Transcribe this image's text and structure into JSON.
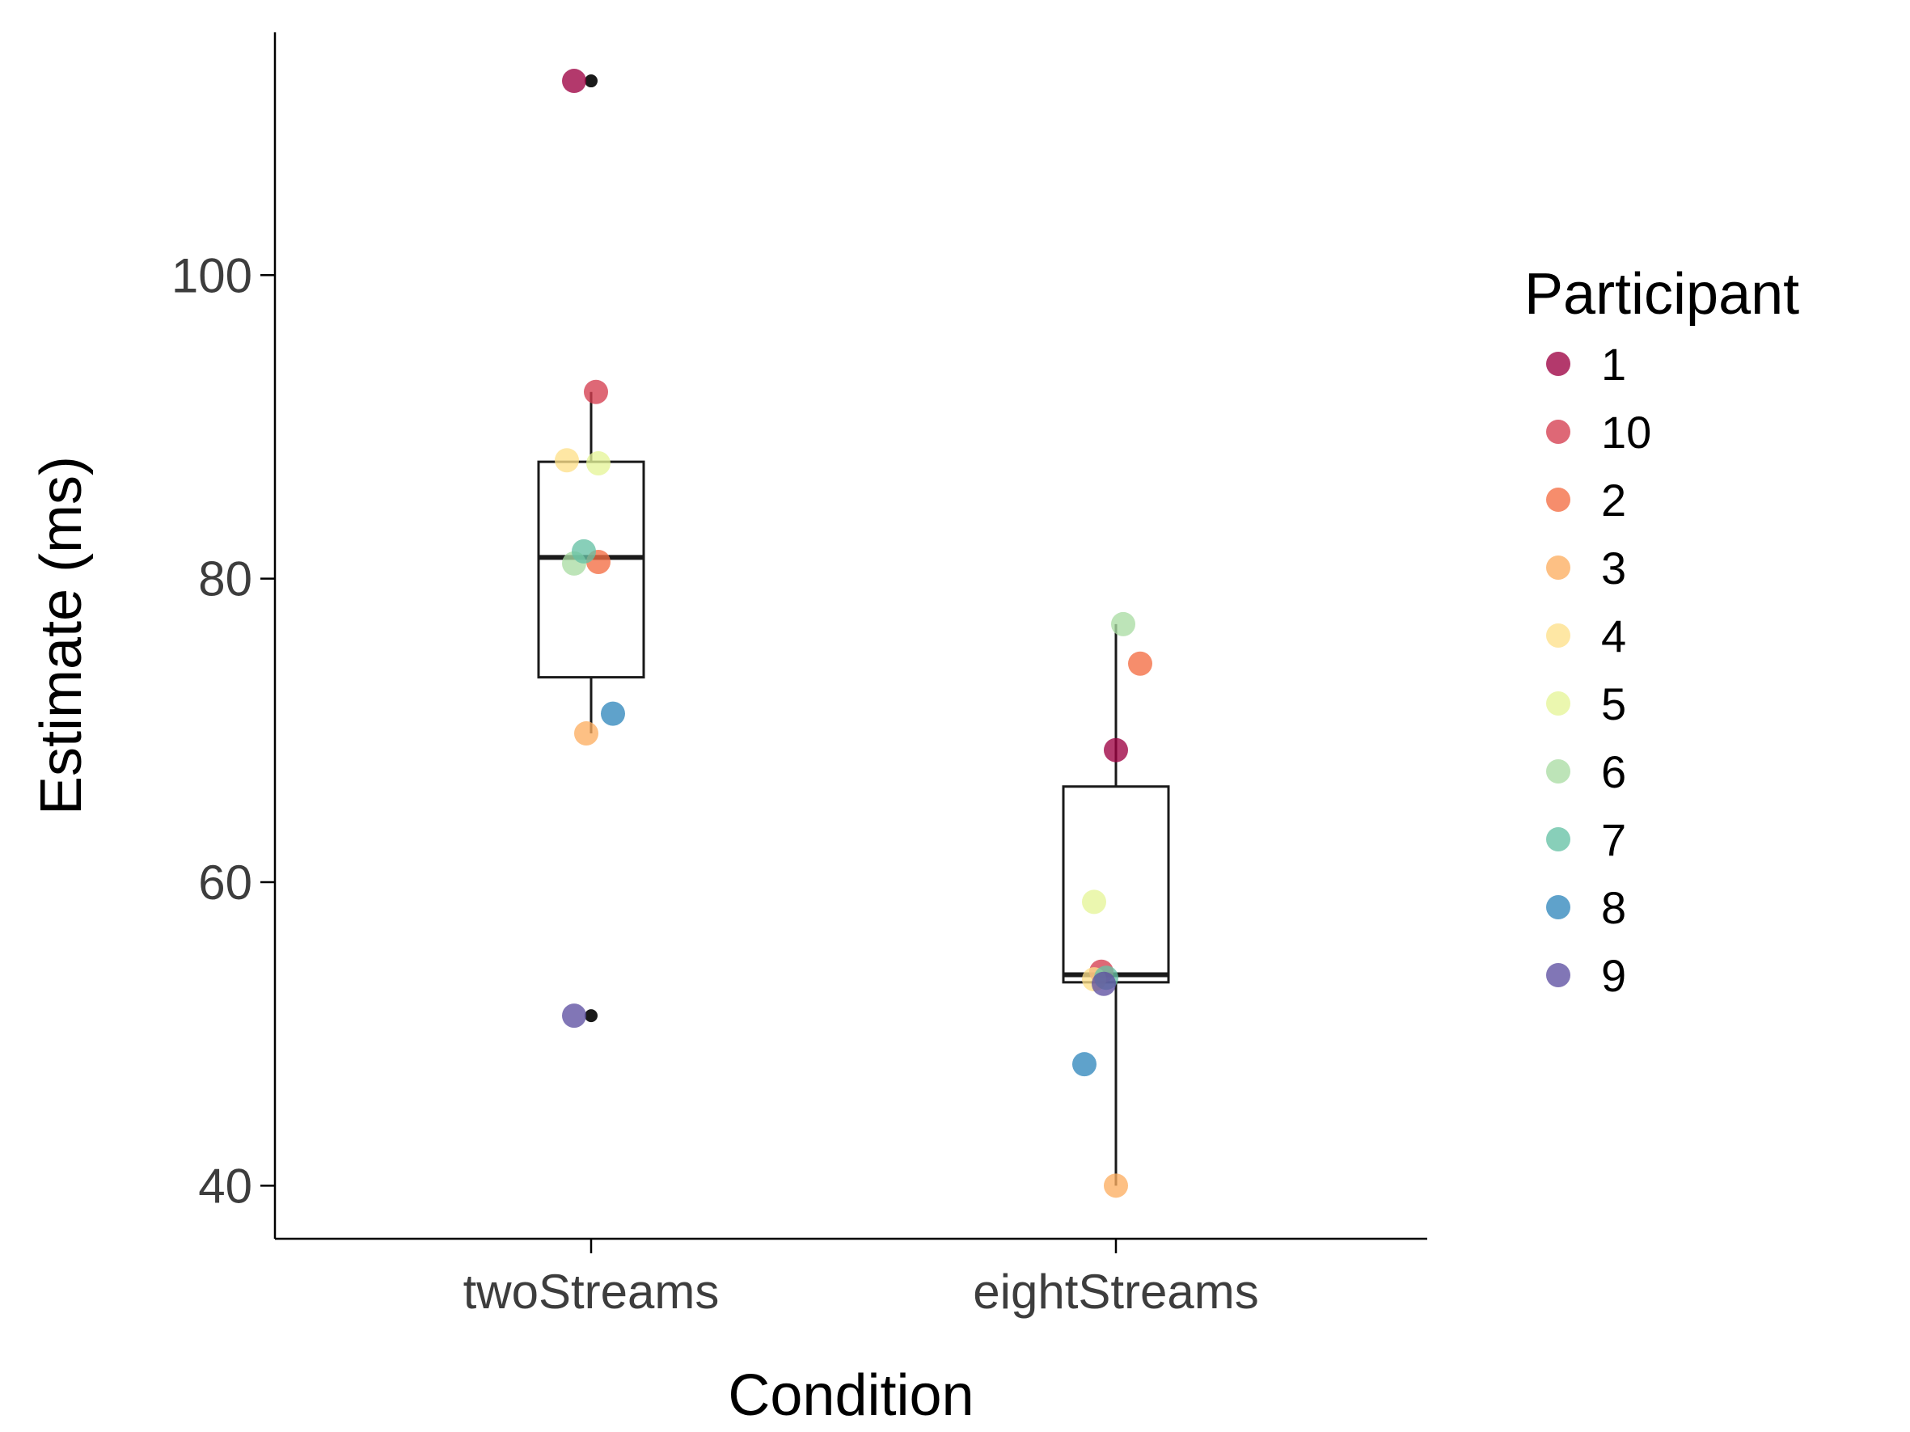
{
  "chart_data": {
    "type": "boxplot",
    "xlabel": "Condition",
    "ylabel": "Estimate (ms)",
    "ylim": [
      36.5,
      116
    ],
    "yticks": [
      40,
      60,
      80,
      100
    ],
    "categories": [
      "twoStreams",
      "eightStreams"
    ],
    "grid": false,
    "legend": {
      "title": "Participant",
      "placement": "right",
      "entries": [
        {
          "name": "1",
          "color": "#9e0142"
        },
        {
          "name": "10",
          "color": "#d53e4f"
        },
        {
          "name": "2",
          "color": "#f46d43"
        },
        {
          "name": "3",
          "color": "#fdae61"
        },
        {
          "name": "4",
          "color": "#fee08b"
        },
        {
          "name": "5",
          "color": "#e6f598"
        },
        {
          "name": "6",
          "color": "#abdda4"
        },
        {
          "name": "7",
          "color": "#66c2a5"
        },
        {
          "name": "8",
          "color": "#3288bd"
        },
        {
          "name": "9",
          "color": "#5e4fa2"
        }
      ]
    },
    "boxes": [
      {
        "category": "twoStreams",
        "q1": 73.5,
        "median": 81.4,
        "q3": 87.7,
        "whisker_low": 69.8,
        "whisker_high": 92.3,
        "outliers": [
          112.8,
          51.2
        ]
      },
      {
        "category": "eightStreams",
        "q1": 53.4,
        "median": 53.9,
        "q3": 66.3,
        "whisker_low": 40.0,
        "whisker_high": 77.0,
        "outliers": []
      }
    ],
    "points": [
      {
        "participant": "1",
        "category": "twoStreams",
        "y": 112.8,
        "jitter": -0.07
      },
      {
        "participant": "10",
        "category": "twoStreams",
        "y": 92.3,
        "jitter": 0.02
      },
      {
        "participant": "2",
        "category": "twoStreams",
        "y": 81.1,
        "jitter": 0.03
      },
      {
        "participant": "3",
        "category": "twoStreams",
        "y": 69.8,
        "jitter": -0.02
      },
      {
        "participant": "4",
        "category": "twoStreams",
        "y": 87.8,
        "jitter": -0.1
      },
      {
        "participant": "5",
        "category": "twoStreams",
        "y": 87.6,
        "jitter": 0.03
      },
      {
        "participant": "6",
        "category": "twoStreams",
        "y": 81.0,
        "jitter": -0.07
      },
      {
        "participant": "7",
        "category": "twoStreams",
        "y": 81.8,
        "jitter": -0.03
      },
      {
        "participant": "8",
        "category": "twoStreams",
        "y": 71.1,
        "jitter": 0.09
      },
      {
        "participant": "9",
        "category": "twoStreams",
        "y": 51.2,
        "jitter": -0.07
      },
      {
        "participant": "1",
        "category": "eightStreams",
        "y": 68.7,
        "jitter": 0.0
      },
      {
        "participant": "10",
        "category": "eightStreams",
        "y": 54.1,
        "jitter": -0.06
      },
      {
        "participant": "2",
        "category": "eightStreams",
        "y": 74.4,
        "jitter": 0.1
      },
      {
        "participant": "3",
        "category": "eightStreams",
        "y": 40.0,
        "jitter": 0.0
      },
      {
        "participant": "4",
        "category": "eightStreams",
        "y": 53.6,
        "jitter": -0.09
      },
      {
        "participant": "5",
        "category": "eightStreams",
        "y": 58.7,
        "jitter": -0.09
      },
      {
        "participant": "6",
        "category": "eightStreams",
        "y": 77.0,
        "jitter": 0.03
      },
      {
        "participant": "7",
        "category": "eightStreams",
        "y": 53.7,
        "jitter": -0.04
      },
      {
        "participant": "8",
        "category": "eightStreams",
        "y": 48.0,
        "jitter": -0.13
      },
      {
        "participant": "9",
        "category": "eightStreams",
        "y": 53.3,
        "jitter": -0.05
      }
    ]
  }
}
